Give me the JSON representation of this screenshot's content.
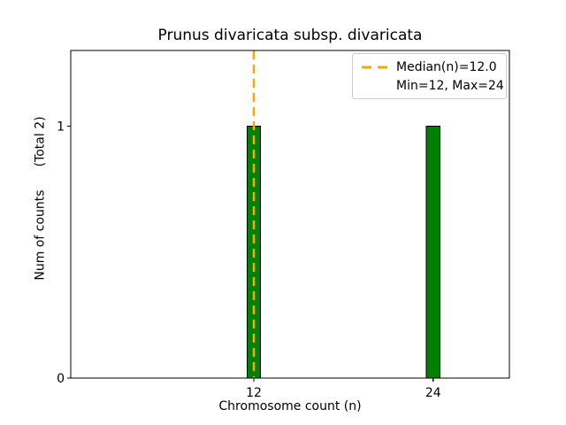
{
  "figure": {
    "title": "Prunus divaricata subsp. divaricata",
    "xlabel": "Chromosome count (n)",
    "ylabel_main": "Num of counts",
    "ylabel_secondary": "(Total 2)"
  },
  "legend": {
    "items": [
      {
        "label": "Median(n)=12.0",
        "marker": "orange-dashed-line"
      },
      {
        "label": "Min=12, Max=24",
        "marker": "none"
      }
    ],
    "position": "upper right"
  },
  "colors": {
    "bar_fill": "#008000",
    "bar_edge": "#000000",
    "median_line": "#FFA500",
    "axis": "#000000",
    "legend_border": "#cccccc",
    "background": "#ffffff"
  },
  "chart_data": {
    "type": "bar",
    "title": "Prunus divaricata subsp. divaricata",
    "xlabel": "Chromosome count (n)",
    "ylabel": "Num of counts    (Total 2)",
    "x": [
      12,
      24
    ],
    "values": [
      1,
      1
    ],
    "total_counts": 2,
    "bar_width_units": 0.9,
    "median_x": 12.0,
    "min": 12,
    "max": 24,
    "xticks": [
      12,
      24
    ],
    "yticks": [
      0,
      1
    ],
    "xlim": [
      -0.25,
      29.1
    ],
    "ylim": [
      0,
      1.3
    ],
    "grid": false,
    "legend_position": "upper right"
  }
}
